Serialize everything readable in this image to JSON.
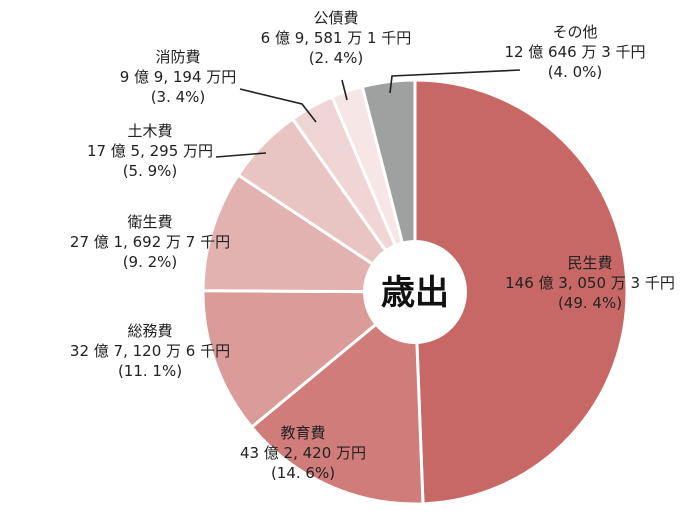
{
  "chart_data": {
    "type": "pie",
    "title": "",
    "center_label": "歳出",
    "start": "12 o'clock",
    "direction": "clockwise",
    "slices": [
      {
        "name": "民生費",
        "amount": "146 億 3, 050 万 3 千円",
        "percent_label": "(49. 4%)",
        "value": 49.4,
        "color": "#c86866"
      },
      {
        "name": "教育費",
        "amount": "43 億 2, 420 万円",
        "percent_label": "(14. 6%)",
        "value": 14.6,
        "color": "#d07c7a"
      },
      {
        "name": "総務費",
        "amount": "32 億 7, 120 万 6 千円",
        "percent_label": "(11. 1%)",
        "value": 11.1,
        "color": "#da9b99"
      },
      {
        "name": "衛生費",
        "amount": "27 億 1, 692 万 7 千円",
        "percent_label": "(9. 2%)",
        "value": 9.2,
        "color": "#e1b2b0"
      },
      {
        "name": "土木費",
        "amount": "17 億 5, 295 万円",
        "percent_label": "(5. 9%)",
        "value": 5.9,
        "color": "#e8c5c3"
      },
      {
        "name": "消防費",
        "amount": "9 億 9, 194 万円",
        "percent_label": "(3. 4%)",
        "value": 3.4,
        "color": "#efd6d4"
      },
      {
        "name": "公債費",
        "amount": "6 億 9, 581 万 1 千円",
        "percent_label": "(2. 4%)",
        "value": 2.4,
        "color": "#f6e6e5"
      },
      {
        "name": "その他",
        "amount": "12 億 646 万 3 千円",
        "percent_label": "(4. 0%)",
        "value": 4.0,
        "color": "#9fa0a0"
      }
    ]
  }
}
